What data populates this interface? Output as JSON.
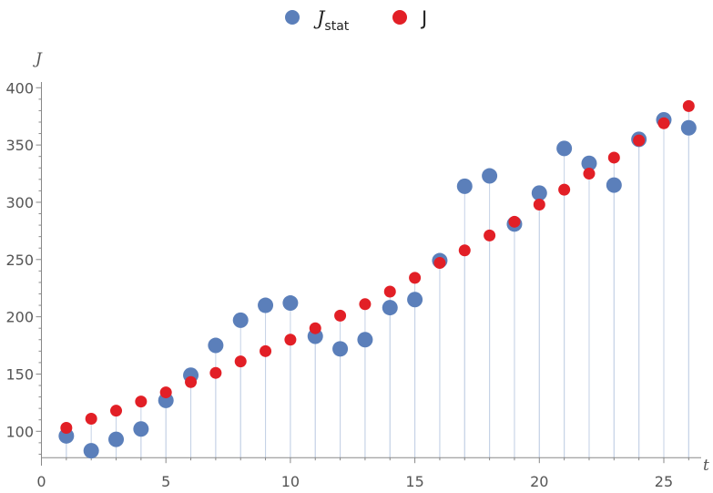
{
  "chart_data": {
    "type": "scatter",
    "xlabel": "t",
    "ylabel": "J",
    "xlim": [
      0,
      26.5
    ],
    "ylim": [
      70,
      405
    ],
    "origin_y": 77,
    "x_ticks": [
      0,
      5,
      10,
      15,
      20,
      25
    ],
    "y_ticks": [
      100,
      150,
      200,
      250,
      300,
      350,
      400
    ],
    "grid": false,
    "legend_position": "top-center",
    "colors": {
      "J_stat": "#5b7fba",
      "J": "#e21f26",
      "stem": "#c5d2e6",
      "axis": "#888888"
    },
    "legend": [
      {
        "key": "J_stat",
        "label_main": "J",
        "label_sub": "stat"
      },
      {
        "key": "J",
        "label_main": "J",
        "label_sub": ""
      }
    ],
    "series": [
      {
        "name": "J_stat",
        "x": [
          1,
          2,
          3,
          4,
          5,
          6,
          7,
          8,
          9,
          10,
          11,
          12,
          13,
          14,
          15,
          16,
          17,
          18,
          19,
          20,
          21,
          22,
          23,
          24,
          25,
          26
        ],
        "y": [
          96,
          83,
          93,
          102,
          127,
          149,
          175,
          197,
          210,
          212,
          183,
          172,
          180,
          208,
          215,
          249,
          314,
          323,
          281,
          308,
          347,
          334,
          315,
          355,
          372,
          365
        ]
      },
      {
        "name": "J",
        "x": [
          1,
          2,
          3,
          4,
          5,
          6,
          7,
          8,
          9,
          10,
          11,
          12,
          13,
          14,
          15,
          16,
          17,
          18,
          19,
          20,
          21,
          22,
          23,
          24,
          25,
          26
        ],
        "y": [
          103,
          111,
          118,
          126,
          134,
          143,
          151,
          161,
          170,
          180,
          190,
          201,
          211,
          222,
          234,
          247,
          258,
          271,
          283,
          298,
          311,
          325,
          339,
          354,
          369,
          384
        ]
      }
    ]
  }
}
